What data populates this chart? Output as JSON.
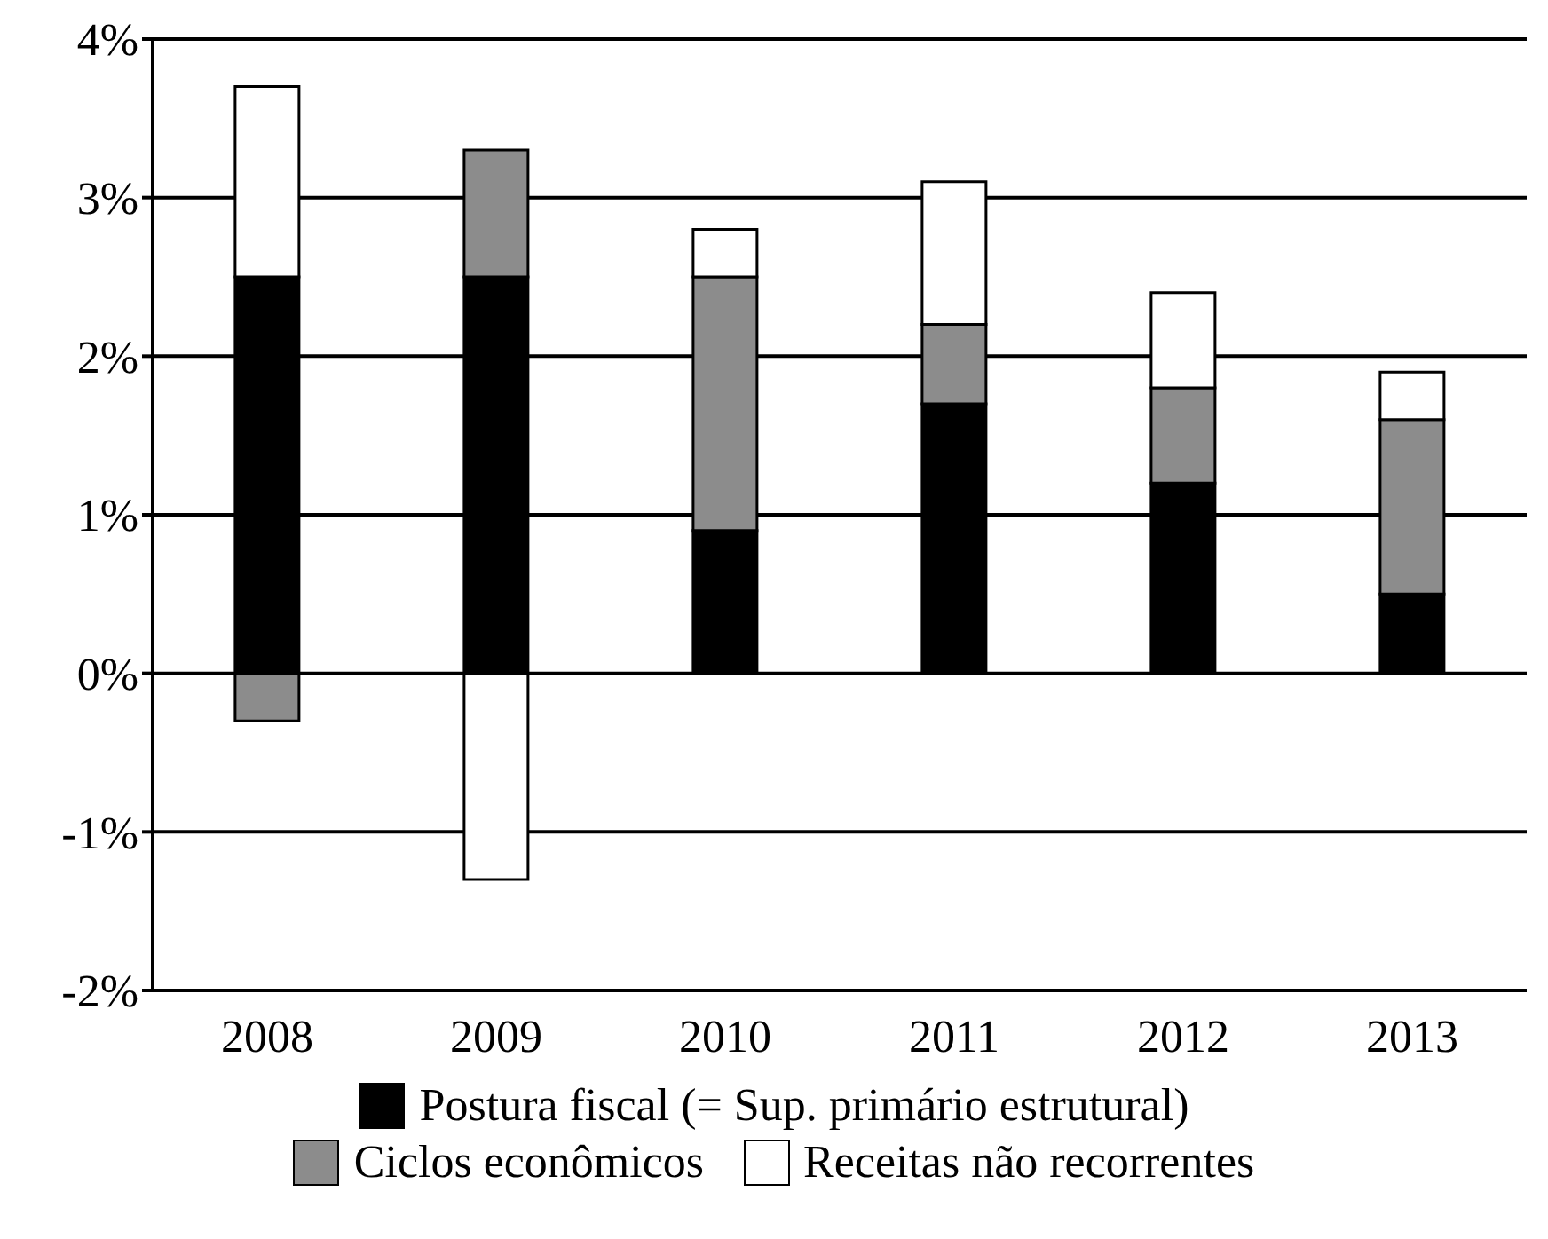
{
  "chart_data": {
    "type": "bar",
    "stacked": true,
    "categories": [
      "2008",
      "2009",
      "2010",
      "2011",
      "2012",
      "2013"
    ],
    "series": [
      {
        "name": "Postura fiscal (= Sup. primário estrutural)",
        "color": "#000000",
        "values": [
          2.5,
          2.5,
          0.9,
          1.7,
          1.2,
          0.5
        ]
      },
      {
        "name": "Ciclos econômicos",
        "color": "#8c8c8c",
        "values": [
          -0.3,
          0.8,
          1.6,
          0.5,
          0.6,
          1.1
        ]
      },
      {
        "name": "Receitas não recorrentes",
        "color": "#ffffff",
        "values": [
          1.2,
          -1.3,
          0.3,
          0.9,
          0.6,
          0.3
        ]
      }
    ],
    "ylim": [
      -2,
      4
    ],
    "yticks": [
      {
        "value": -2,
        "label": "-2%"
      },
      {
        "value": -1,
        "label": "-1%"
      },
      {
        "value": 0,
        "label": "0%"
      },
      {
        "value": 1,
        "label": "1%"
      },
      {
        "value": 2,
        "label": "2%"
      },
      {
        "value": 3,
        "label": "3%"
      },
      {
        "value": 4,
        "label": "4%"
      }
    ],
    "grid": "y",
    "legend": "bottom"
  }
}
